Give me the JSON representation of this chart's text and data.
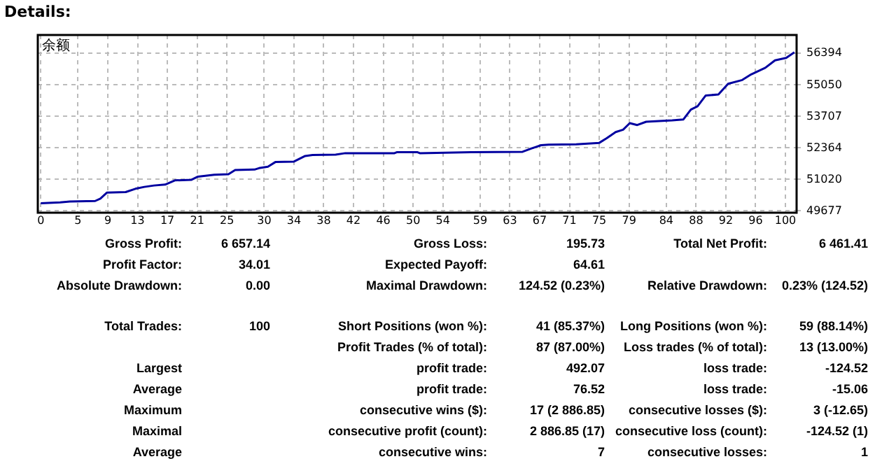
{
  "chart_data": {
    "type": "line",
    "title": "Details:",
    "x": [
      0,
      2.6,
      3.9,
      7.3,
      8,
      8.9,
      11.4,
      12.7,
      13.9,
      15.2,
      16.7,
      18,
      20.2,
      21.1,
      23.3,
      25.2,
      26.1,
      28.7,
      29.3,
      30.5,
      31.5,
      34,
      35.5,
      36.5,
      39.6,
      40.9,
      47.5,
      47.8,
      50.6,
      50.9,
      57.8,
      64.7,
      65.9,
      67.2,
      68.2,
      71.9,
      75,
      76,
      77.2,
      78.2,
      79.1,
      80.1,
      81.3,
      82.6,
      84.8,
      86.3,
      87.3,
      88.2,
      89.3,
      91,
      92.3,
      94.2,
      95.4,
      97.3,
      98.6,
      100.1,
      101.2
    ],
    "series": [
      {
        "name": "余额",
        "color": "#0000a0",
        "values": [
          50000,
          50040,
          50080,
          50100,
          50200,
          50460,
          50480,
          50620,
          50700,
          50760,
          50800,
          50980,
          51000,
          51140,
          51220,
          51240,
          51420,
          51440,
          51500,
          51560,
          51760,
          51780,
          52020,
          52060,
          52080,
          52140,
          52140,
          52180,
          52180,
          52140,
          52180,
          52200,
          52340,
          52480,
          52500,
          52520,
          52580,
          52780,
          53040,
          53140,
          53420,
          53340,
          53480,
          53500,
          53540,
          53580,
          54000,
          54140,
          54600,
          54640,
          55100,
          55260,
          55500,
          55780,
          56100,
          56200,
          56440
        ]
      }
    ],
    "xlim": [
      -0.4,
      101.5
    ],
    "xticks": [
      0,
      5,
      9,
      13,
      17,
      21,
      25,
      30,
      34,
      38,
      42,
      46,
      50,
      54,
      59,
      63,
      67,
      71,
      75,
      79,
      84,
      88,
      92,
      96,
      100
    ],
    "ylim": [
      49600,
      57180
    ],
    "yticks": [
      49677,
      51020,
      52364,
      53707,
      55050,
      56394
    ],
    "grid": true,
    "legend": false,
    "marker": "none",
    "line_style": "solid",
    "annotations": [
      "Gross Profit:",
      "6 657.14",
      "Gross Loss:",
      "195.73",
      "Total Net Profit:",
      "6 461.41",
      "Profit Factor:",
      "34.01",
      "Expected Payoff:",
      "64.61",
      "Absolute Drawdown:",
      "0.00",
      "Maximal Drawdown:",
      "124.52 (0.23%)",
      "Relative Drawdown:",
      "0.23% (124.52)",
      "Total Trades:",
      "100",
      "Short Positions (won %):",
      "41 (85.37%)",
      "Long Positions (won %):",
      "59 (88.14%)",
      "Profit Trades (% of total):",
      "87 (87.00%)",
      "Loss trades (% of total):",
      "13 (13.00%)",
      "Largest",
      "profit trade:",
      "492.07",
      "loss trade:",
      "-124.52",
      "Average",
      "profit trade:",
      "76.52",
      "loss trade:",
      "-15.06",
      "Maximum",
      "consecutive wins ($):",
      "17 (2 886.85)",
      "consecutive losses ($):",
      "3 (-12.65)",
      "Maximal",
      "consecutive profit (count):",
      "2 886.85 (17)",
      "consecutive loss (count):",
      "-124.52 (1)",
      "Average",
      "consecutive wins:",
      "7",
      "consecutive losses:",
      "1"
    ]
  }
}
